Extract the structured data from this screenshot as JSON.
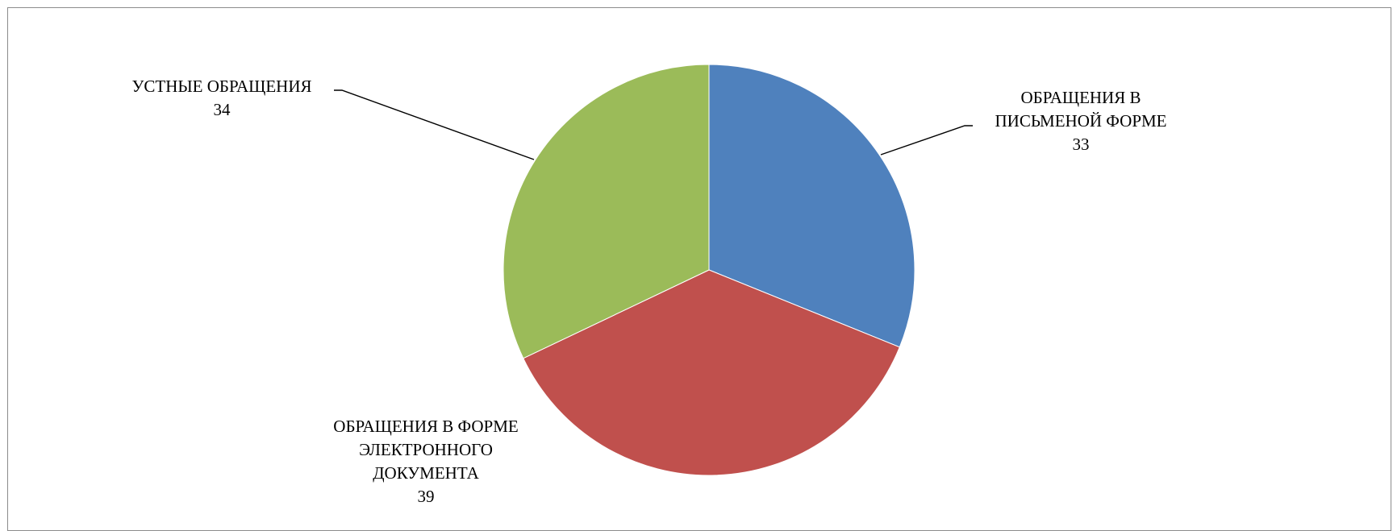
{
  "chart_data": {
    "type": "pie",
    "title": "",
    "slices": [
      {
        "label_lines": [
          "ОБРАЩЕНИЯ В",
          "ПИСЬМЕНОЙ ФОРМЕ"
        ],
        "value": 33,
        "color": "#4F81BD"
      },
      {
        "label_lines": [
          "ОБРАЩЕНИЯ В ФОРМЕ",
          "ЭЛЕКТРОННОГО",
          "ДОКУМЕНТА"
        ],
        "value": 39,
        "color": "#C0504D"
      },
      {
        "label_lines": [
          "УСТНЫЕ ОБРАЩЕНИЯ"
        ],
        "value": 34,
        "color": "#9BBB59"
      }
    ],
    "start": "12 o'clock",
    "direction": "clockwise",
    "legend": "none",
    "data_labels": "outside with leader lines"
  }
}
